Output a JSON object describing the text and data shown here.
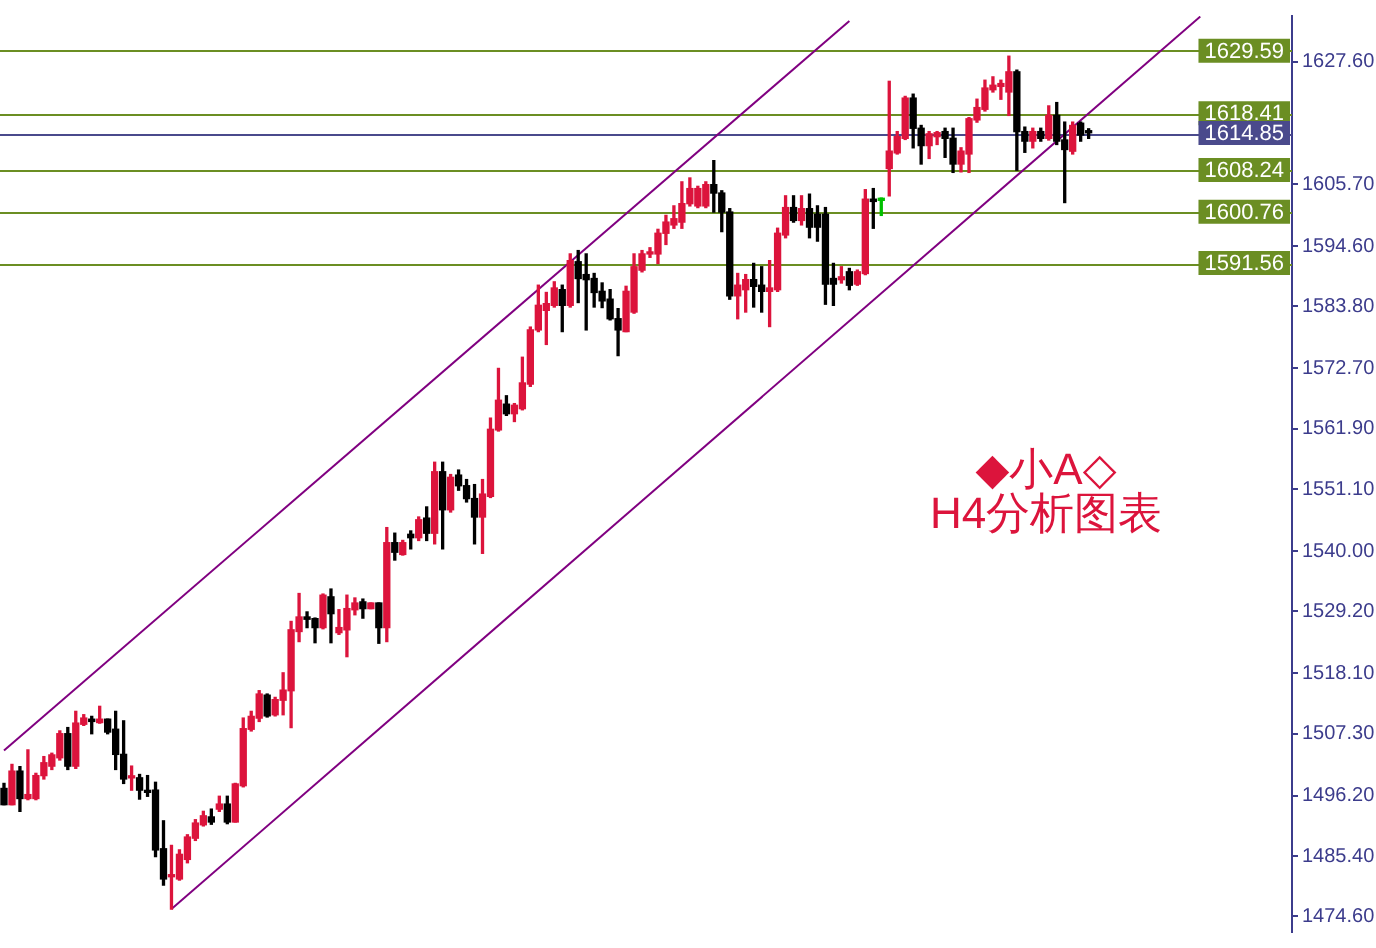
{
  "chart_data": {
    "type": "candlestick",
    "tick_labels": "y",
    "categories": [
      null,
      null,
      null,
      null,
      null,
      null,
      null,
      null,
      null,
      null,
      null,
      null,
      null,
      null,
      null,
      null,
      null,
      null,
      null,
      null,
      null,
      null,
      null,
      null,
      null,
      null,
      null,
      null,
      null,
      null,
      null,
      null,
      null,
      null,
      null,
      null,
      null,
      null,
      null,
      null,
      null,
      null,
      null,
      null,
      null,
      null,
      null,
      null,
      null,
      null,
      null,
      null,
      null,
      null,
      null,
      null,
      null,
      null,
      null,
      null,
      null,
      null,
      null,
      null,
      null,
      null,
      null,
      null,
      null,
      null,
      null,
      null,
      null,
      null,
      null,
      null,
      null,
      null,
      null,
      null,
      null,
      null,
      null,
      null,
      null,
      null,
      null,
      null,
      null,
      null,
      null,
      null,
      null,
      null,
      null,
      null,
      null,
      null,
      null,
      null,
      null,
      null,
      null,
      null,
      null,
      null,
      null,
      null,
      null,
      null,
      null,
      null,
      null,
      null,
      null,
      null,
      null,
      null,
      null,
      null,
      null,
      null,
      null,
      null,
      null,
      null,
      null,
      null,
      null,
      null,
      null,
      null,
      null,
      null,
      null,
      null,
      null,
      null,
      null,
      null,
      null,
      null,
      null,
      null,
      null,
      null,
      null,
      null,
      null,
      null,
      null,
      null,
      null,
      null,
      null,
      null,
      null,
      null,
      null,
      null,
      null,
      null
    ],
    "ohlc": [
      [
        1497.5,
        1498.4,
        1494.6,
        1494.6
      ],
      [
        1494.6,
        1501.8,
        1494.6,
        1500.6
      ],
      [
        1500.6,
        1501.4,
        1493.4,
        1495.7
      ],
      [
        1495.7,
        1504.4,
        1495.5,
        1496.4
      ],
      [
        1495.7,
        1500.2,
        1495.5,
        1499.8
      ],
      [
        1499.8,
        1503.2,
        1499.2,
        1502.1
      ],
      [
        1501.5,
        1503.8,
        1500.9,
        1503.5
      ],
      [
        1503.0,
        1507.8,
        1502.6,
        1507.3
      ],
      [
        1507.3,
        1508.4,
        1500.9,
        1501.5
      ],
      [
        1501.5,
        1511.3,
        1501.1,
        1509.2
      ],
      [
        1509.0,
        1510.7,
        1508.8,
        1510.1
      ],
      [
        1509.9,
        1510.4,
        1507.3,
        1509.5
      ],
      [
        1509.3,
        1512.2,
        1509.2,
        1509.9
      ],
      [
        1509.9,
        1509.9,
        1507.3,
        1507.6
      ],
      [
        1508.1,
        1511.3,
        1500.9,
        1503.6
      ],
      [
        1503.6,
        1509.6,
        1498.4,
        1499.2
      ],
      [
        1499.4,
        1501.5,
        1497.2,
        1499.4
      ],
      [
        1499.4,
        1500.0,
        1495.6,
        1497.2
      ],
      [
        1497.1,
        1499.8,
        1496.1,
        1496.8
      ],
      [
        1497.2,
        1498.6,
        1485.3,
        1486.5
      ],
      [
        1486.7,
        1491.7,
        1480.2,
        1481.3
      ],
      [
        1481.7,
        1487.3,
        1475.9,
        1481.7
      ],
      [
        1481.3,
        1486.5,
        1481.1,
        1485.7
      ],
      [
        1484.8,
        1489.2,
        1484.2,
        1488.8
      ],
      [
        1488.6,
        1491.9,
        1488.2,
        1491.3
      ],
      [
        1491.0,
        1493.4,
        1490.8,
        1492.6
      ],
      [
        1492.4,
        1493.8,
        1491.1,
        1491.5
      ],
      [
        1493.8,
        1496.1,
        1493.4,
        1494.7
      ],
      [
        1494.7,
        1496.1,
        1491.2,
        1491.5
      ],
      [
        1491.5,
        1498.4,
        1491.5,
        1498.3
      ],
      [
        1498.0,
        1510.1,
        1497.8,
        1508.2
      ],
      [
        1508.1,
        1511.3,
        1507.8,
        1510.4
      ],
      [
        1510.1,
        1515.0,
        1509.5,
        1514.4
      ],
      [
        1514.2,
        1514.4,
        1510.3,
        1510.5
      ],
      [
        1510.7,
        1513.8,
        1510.5,
        1513.4
      ],
      [
        1513.3,
        1518.2,
        1510.7,
        1515.1
      ],
      [
        1515.0,
        1527.4,
        1508.4,
        1525.9
      ],
      [
        1525.6,
        1532.4,
        1523.8,
        1528.2
      ],
      [
        1528.2,
        1529.1,
        1526.3,
        1527.8
      ],
      [
        1527.9,
        1528.0,
        1523.6,
        1526.3
      ],
      [
        1526.3,
        1532.3,
        1526.1,
        1532.1
      ],
      [
        1531.8,
        1533.2,
        1523.6,
        1528.8
      ],
      [
        1525.4,
        1529.5,
        1525.1,
        1526.3
      ],
      [
        1525.9,
        1532.1,
        1521.1,
        1529.7
      ],
      [
        1529.5,
        1531.6,
        1528.6,
        1530.7
      ],
      [
        1530.9,
        1531.4,
        1528.0,
        1529.7
      ],
      [
        1529.7,
        1530.7,
        1529.7,
        1530.7
      ],
      [
        1530.7,
        1530.7,
        1523.5,
        1526.3
      ],
      [
        1526.3,
        1544.2,
        1523.8,
        1541.5
      ],
      [
        1541.5,
        1543.2,
        1538.4,
        1539.8
      ],
      [
        1539.4,
        1541.9,
        1539.3,
        1541.5
      ],
      [
        1543.0,
        1543.6,
        1540.4,
        1542.4
      ],
      [
        1542.4,
        1546.1,
        1541.9,
        1545.6
      ],
      [
        1545.9,
        1547.9,
        1541.9,
        1543.2
      ],
      [
        1543.2,
        1555.9,
        1541.3,
        1554.2
      ],
      [
        1554.2,
        1555.9,
        1540.4,
        1547.4
      ],
      [
        1547.4,
        1553.7,
        1547.0,
        1553.2
      ],
      [
        1553.6,
        1554.5,
        1550.9,
        1551.7
      ],
      [
        1551.7,
        1552.8,
        1548.8,
        1549.4
      ],
      [
        1549.4,
        1551.9,
        1541.3,
        1546.1
      ],
      [
        1546.1,
        1552.8,
        1539.6,
        1550.2
      ],
      [
        1549.8,
        1563.8,
        1549.6,
        1561.8
      ],
      [
        1561.7,
        1572.7,
        1561.5,
        1567.0
      ],
      [
        1566.3,
        1567.8,
        1564.3,
        1564.6
      ],
      [
        1564.6,
        1566.4,
        1563.2,
        1566.1
      ],
      [
        1565.5,
        1574.7,
        1565.3,
        1570.1
      ],
      [
        1569.9,
        1580.1,
        1569.5,
        1579.6
      ],
      [
        1579.6,
        1587.6,
        1579.3,
        1584.0
      ],
      [
        1583.1,
        1586.3,
        1577.0,
        1584.3
      ],
      [
        1584.0,
        1588.2,
        1583.7,
        1587.1
      ],
      [
        1586.8,
        1587.6,
        1579.3,
        1584.0
      ],
      [
        1584.0,
        1593.2,
        1583.7,
        1592.0
      ],
      [
        1591.8,
        1593.8,
        1584.5,
        1588.8
      ],
      [
        1589.5,
        1593.2,
        1579.6,
        1588.6
      ],
      [
        1588.8,
        1589.7,
        1583.7,
        1586.3
      ],
      [
        1586.5,
        1588.0,
        1583.6,
        1584.8
      ],
      [
        1585.1,
        1586.8,
        1581.4,
        1581.6
      ],
      [
        1581.6,
        1583.4,
        1575.0,
        1579.6
      ],
      [
        1579.3,
        1587.4,
        1579.3,
        1586.5
      ],
      [
        1582.8,
        1593.2,
        1582.6,
        1590.9
      ],
      [
        1590.3,
        1593.8,
        1590.0,
        1593.2
      ],
      [
        1593.2,
        1594.3,
        1592.6,
        1593.2
      ],
      [
        1593.2,
        1597.6,
        1591.5,
        1596.9
      ],
      [
        1596.9,
        1600.1,
        1594.9,
        1598.9
      ],
      [
        1598.4,
        1601.8,
        1597.8,
        1599.5
      ],
      [
        1598.9,
        1606.1,
        1597.8,
        1602.2
      ],
      [
        1602.2,
        1606.8,
        1601.8,
        1604.9
      ],
      [
        1601.8,
        1605.3,
        1601.5,
        1604.9
      ],
      [
        1601.8,
        1606.1,
        1601.5,
        1605.6
      ],
      [
        1605.6,
        1609.9,
        1600.7,
        1604.1
      ],
      [
        1604.1,
        1604.5,
        1597.2,
        1600.7
      ],
      [
        1600.7,
        1601.3,
        1585.1,
        1585.7
      ],
      [
        1585.7,
        1589.7,
        1581.6,
        1587.6
      ],
      [
        1586.8,
        1589.5,
        1582.8,
        1588.6
      ],
      [
        1588.6,
        1591.5,
        1583.7,
        1587.4
      ],
      [
        1587.6,
        1590.9,
        1582.8,
        1586.5
      ],
      [
        1586.5,
        1592.0,
        1580.2,
        1587.1
      ],
      [
        1586.8,
        1597.8,
        1586.5,
        1596.9
      ],
      [
        1596.6,
        1603.6,
        1596.1,
        1601.5
      ],
      [
        1601.5,
        1603.6,
        1598.9,
        1599.2
      ],
      [
        1599.2,
        1603.6,
        1598.4,
        1601.3
      ],
      [
        1601.3,
        1603.9,
        1596.1,
        1598.0
      ],
      [
        1600.3,
        1601.8,
        1595.5,
        1598.0
      ],
      [
        1600.3,
        1601.5,
        1584.2,
        1587.8
      ],
      [
        1588.8,
        1591.5,
        1584.0,
        1587.8
      ],
      [
        1588.6,
        1590.9,
        1588.0,
        1589.1
      ],
      [
        1590.0,
        1590.6,
        1586.8,
        1587.6
      ],
      [
        1587.8,
        1590.3,
        1587.6,
        1590.0
      ],
      [
        1589.7,
        1604.7,
        1589.5,
        1603.0
      ],
      [
        1603.0,
        1604.9,
        1597.8,
        1602.6
      ],
      [
        1602.8,
        1603.2,
        1600.1,
        1602.8
      ],
      [
        1608.5,
        1624.1,
        1603.6,
        1611.6
      ],
      [
        1611.3,
        1615.1,
        1611.1,
        1614.2
      ],
      [
        1613.9,
        1621.4,
        1613.7,
        1621.1
      ],
      [
        1621.1,
        1621.8,
        1612.2,
        1615.7
      ],
      [
        1615.7,
        1616.2,
        1609.3,
        1612.6
      ],
      [
        1612.6,
        1615.1,
        1610.3,
        1614.7
      ],
      [
        1614.2,
        1615.1,
        1612.8,
        1614.9
      ],
      [
        1615.1,
        1615.7,
        1610.5,
        1613.9
      ],
      [
        1613.9,
        1615.7,
        1607.8,
        1609.3
      ],
      [
        1609.3,
        1612.2,
        1607.9,
        1611.6
      ],
      [
        1611.1,
        1617.6,
        1607.8,
        1617.4
      ],
      [
        1617.2,
        1620.9,
        1616.8,
        1619.4
      ],
      [
        1619.1,
        1624.3,
        1618.8,
        1622.9
      ],
      [
        1622.6,
        1624.9,
        1622.2,
        1623.4
      ],
      [
        1623.2,
        1624.3,
        1620.9,
        1623.7
      ],
      [
        1622.2,
        1628.6,
        1618.0,
        1625.8
      ],
      [
        1625.8,
        1626.1,
        1608.2,
        1615.1
      ],
      [
        1615.1,
        1615.9,
        1611.4,
        1613.4
      ],
      [
        1613.4,
        1615.7,
        1612.2,
        1615.1
      ],
      [
        1615.1,
        1615.7,
        1613.4,
        1613.9
      ],
      [
        1613.9,
        1619.7,
        1613.6,
        1618.0
      ],
      [
        1618.0,
        1620.3,
        1612.8,
        1613.4
      ],
      [
        1613.6,
        1616.8,
        1602.4,
        1611.9
      ],
      [
        1611.6,
        1616.8,
        1611.1,
        1616.2
      ],
      [
        1616.6,
        1616.8,
        1613.4,
        1614.5
      ],
      [
        1614.9,
        1615.6,
        1613.9,
        1614.9
      ],
      null,
      null,
      null,
      null,
      null,
      null,
      null,
      null,
      null,
      null,
      null,
      null,
      null,
      null,
      null,
      null,
      null,
      null,
      null,
      null,
      null,
      null,
      null,
      null,
      null
    ],
    "colors": [
      "#000000",
      "#dc143c",
      "#000000",
      "#dc143c",
      "#dc143c",
      "#dc143c",
      "#dc143c",
      "#dc143c",
      "#000000",
      "#dc143c",
      "#dc143c",
      "#000000",
      "#dc143c",
      "#000000",
      "#000000",
      "#000000",
      "#dc143c",
      "#000000",
      "#000000",
      "#000000",
      "#000000",
      "#dc143c",
      "#dc143c",
      "#dc143c",
      "#dc143c",
      "#dc143c",
      "#000000",
      "#dc143c",
      "#000000",
      "#dc143c",
      "#dc143c",
      "#dc143c",
      "#dc143c",
      "#000000",
      "#dc143c",
      "#dc143c",
      "#dc143c",
      "#dc143c",
      "#000000",
      "#000000",
      "#dc143c",
      "#000000",
      "#dc143c",
      "#dc143c",
      "#dc143c",
      "#000000",
      "#dc143c",
      "#000000",
      "#dc143c",
      "#000000",
      "#dc143c",
      "#000000",
      "#dc143c",
      "#000000",
      "#dc143c",
      "#000000",
      "#dc143c",
      "#000000",
      "#000000",
      "#000000",
      "#dc143c",
      "#dc143c",
      "#dc143c",
      "#000000",
      "#dc143c",
      "#dc143c",
      "#dc143c",
      "#dc143c",
      "#dc143c",
      "#dc143c",
      "#000000",
      "#dc143c",
      "#000000",
      "#000000",
      "#000000",
      "#000000",
      "#000000",
      "#000000",
      "#dc143c",
      "#dc143c",
      "#dc143c",
      "#dc143c",
      "#dc143c",
      "#dc143c",
      "#dc143c",
      "#dc143c",
      "#dc143c",
      "#dc143c",
      "#dc143c",
      "#000000",
      "#000000",
      "#000000",
      "#dc143c",
      "#dc143c",
      "#000000",
      "#000000",
      "#dc143c",
      "#dc143c",
      "#dc143c",
      "#000000",
      "#dc143c",
      "#000000",
      "#000000",
      "#000000",
      "#000000",
      "#dc143c",
      "#000000",
      "#dc143c",
      "#dc143c",
      "#000000",
      "#00c000",
      "#dc143c",
      "#dc143c",
      "#dc143c",
      "#000000",
      "#000000",
      "#dc143c",
      "#dc143c",
      "#000000",
      "#000000",
      "#dc143c",
      "#dc143c",
      "#dc143c",
      "#dc143c",
      "#dc143c",
      "#dc143c",
      "#dc143c",
      "#000000",
      "#000000",
      "#dc143c",
      "#000000",
      "#dc143c",
      "#000000",
      "#000000",
      "#dc143c",
      "#000000",
      "#000000",
      null,
      null,
      null,
      null,
      null,
      null,
      null,
      null,
      null,
      null,
      null,
      null,
      null,
      null,
      null,
      null,
      null,
      null,
      null,
      null,
      null,
      null,
      null,
      null,
      null
    ],
    "series": [
      {
        "type": "line",
        "color": "#800080",
        "values": [
          1504.3,
          null,
          null,
          null,
          null,
          null,
          null,
          null,
          null,
          null,
          null,
          null,
          null,
          null,
          null,
          null,
          null,
          null,
          null,
          null,
          null,
          null,
          null,
          null,
          null,
          null,
          null,
          null,
          null,
          null,
          null,
          null,
          null,
          null,
          null,
          null,
          null,
          null,
          null,
          null,
          null,
          null,
          null,
          null,
          null,
          null,
          null,
          null,
          null,
          null,
          null,
          null,
          null,
          null,
          null,
          null,
          null,
          null,
          null,
          null,
          null,
          null,
          null,
          null,
          null,
          null,
          null,
          null,
          null,
          null,
          null,
          null,
          null,
          null,
          null,
          null,
          null,
          null,
          null,
          null,
          null,
          null,
          null,
          null,
          null,
          null,
          null,
          null,
          null,
          null,
          null,
          null,
          null,
          null,
          null,
          null,
          null,
          null,
          null,
          null,
          null,
          null,
          null,
          null,
          null,
          null,
          1634.9,
          null,
          null,
          null,
          null,
          null,
          null,
          null,
          null,
          null,
          null,
          null,
          null,
          null,
          null,
          null,
          null,
          null,
          null,
          null,
          null,
          null,
          null,
          null,
          null,
          null,
          null,
          null,
          null,
          null,
          null,
          null,
          null,
          null,
          null,
          null,
          null,
          null,
          null,
          null,
          null,
          null,
          null,
          null,
          null,
          null,
          null,
          null,
          null,
          null,
          null,
          null,
          null,
          null,
          null,
          null
        ]
      },
      {
        "type": "line",
        "color": "#800080",
        "values": [
          null,
          null,
          null,
          null,
          null,
          null,
          null,
          null,
          null,
          null,
          null,
          null,
          null,
          null,
          null,
          null,
          null,
          null,
          null,
          null,
          null,
          1475.9,
          null,
          null,
          null,
          null,
          null,
          null,
          null,
          null,
          null,
          null,
          null,
          null,
          null,
          null,
          null,
          null,
          null,
          null,
          null,
          null,
          null,
          null,
          null,
          null,
          null,
          null,
          null,
          null,
          null,
          null,
          null,
          null,
          null,
          null,
          null,
          null,
          null,
          null,
          null,
          null,
          null,
          null,
          null,
          null,
          null,
          null,
          null,
          null,
          null,
          null,
          null,
          null,
          null,
          null,
          null,
          null,
          null,
          null,
          null,
          null,
          null,
          null,
          null,
          null,
          null,
          null,
          null,
          null,
          null,
          null,
          null,
          null,
          null,
          null,
          null,
          null,
          null,
          null,
          null,
          null,
          null,
          null,
          null,
          null,
          null,
          null,
          null,
          null,
          null,
          null,
          null,
          null,
          null,
          null,
          null,
          null,
          null,
          null,
          null,
          null,
          null,
          null,
          null,
          null,
          null,
          null,
          null,
          null,
          null,
          null,
          null,
          null,
          null,
          null,
          null,
          null,
          null,
          null,
          null,
          null,
          null,
          null,
          null,
          null,
          null,
          null,
          null,
          null,
          1635.7,
          null,
          null,
          null,
          null,
          null,
          null,
          null,
          null,
          null,
          null,
          null
        ]
      }
    ],
    "ylim": [
      1471.8,
      1635.8
    ],
    "yticks": [
      {
        "value": 1474.6,
        "label": "1474.60"
      },
      {
        "value": 1485.4,
        "label": "1485.40"
      },
      {
        "value": 1496.2,
        "label": "1496.20"
      },
      {
        "value": 1507.3,
        "label": "1507.30"
      },
      {
        "value": 1518.1,
        "label": "1518.10"
      },
      {
        "value": 1529.2,
        "label": "1529.20"
      },
      {
        "value": 1540.0,
        "label": "1540.00"
      },
      {
        "value": 1551.1,
        "label": "1551.10"
      },
      {
        "value": 1561.9,
        "label": "1561.90"
      },
      {
        "value": 1572.7,
        "label": "1572.70"
      },
      {
        "value": 1583.8,
        "label": "1583.80"
      },
      {
        "value": 1594.6,
        "label": "1594.60"
      },
      {
        "value": 1605.7,
        "label": "1605.70"
      },
      {
        "value": 1627.6,
        "label": "1627.60"
      }
    ],
    "ref_lines": [
      {
        "axis": "y",
        "value": 1629.59,
        "label": "1629.59",
        "color": "#6b8e23"
      },
      {
        "axis": "y",
        "value": 1618.41,
        "label": "1618.41",
        "color": "#6b8e23"
      },
      {
        "axis": "y",
        "value": 1614.85,
        "label": "1614.85",
        "color": "#4a4a8c"
      },
      {
        "axis": "y",
        "value": 1608.24,
        "label": "1608.24",
        "color": "#6b8e23"
      },
      {
        "axis": "y",
        "value": 1600.76,
        "label": "1600.76",
        "color": "#6b8e23"
      },
      {
        "axis": "y",
        "value": 1591.56,
        "label": "1591.56",
        "color": "#6b8e23"
      }
    ],
    "annotations": [
      "◆小A◇",
      "H4分析图表"
    ]
  }
}
